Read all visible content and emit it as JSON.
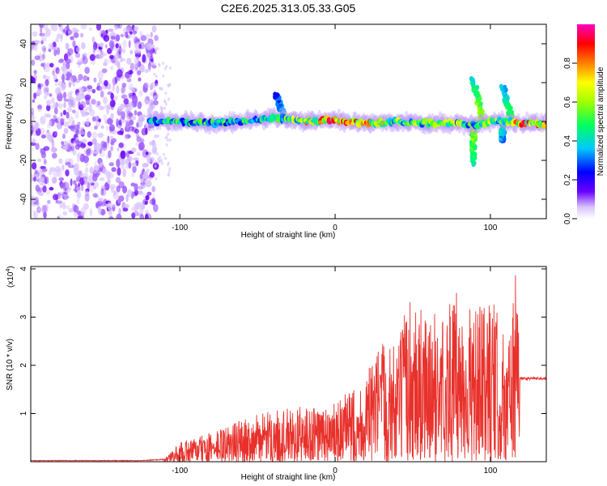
{
  "figure": {
    "title": "C2E6.2025.313.05.33.G05"
  },
  "chart_data": [
    {
      "type": "heatmap",
      "title": "C2E6.2025.313.05.33.G05",
      "xlabel": "Height of straight line (km)",
      "ylabel": "Frequency (Hz)",
      "xlim": [
        -196,
        136
      ],
      "ylim": [
        -50,
        50
      ],
      "xticks": [
        -100,
        0,
        100
      ],
      "yticks": [
        -40,
        -20,
        0,
        20,
        40
      ],
      "grid": false,
      "colorbar": {
        "label": "Normalized spectral amplitude",
        "range": [
          0,
          1
        ],
        "ticks": [
          0.0,
          0.2,
          0.4,
          0.6,
          0.8
        ],
        "colors": [
          "#ffffff",
          "#6a00ff",
          "#0000ff",
          "#00ffff",
          "#00ff00",
          "#ffff00",
          "#ff8000",
          "#ff0000",
          "#ff00ff"
        ]
      },
      "noise_region": {
        "x_range": [
          -196,
          -115
        ],
        "y_range": [
          -50,
          50
        ],
        "amplitude": 0.1
      },
      "ridge": [
        {
          "x": -120,
          "freq": 0,
          "amp": 0.4
        },
        {
          "x": -100,
          "freq": 0,
          "amp": 0.5
        },
        {
          "x": -80,
          "freq": -1,
          "amp": 0.5
        },
        {
          "x": -60,
          "freq": 0,
          "amp": 0.5
        },
        {
          "x": -40,
          "freq": 2,
          "amp": 0.45
        },
        {
          "x": -20,
          "freq": 0,
          "amp": 0.7
        },
        {
          "x": 0,
          "freq": 1,
          "amp": 0.85
        },
        {
          "x": 20,
          "freq": -1,
          "amp": 0.75
        },
        {
          "x": 40,
          "freq": 0,
          "amp": 0.6
        },
        {
          "x": 60,
          "freq": -1,
          "amp": 0.55
        },
        {
          "x": 80,
          "freq": -1,
          "amp": 0.6
        },
        {
          "x": 90,
          "freq": -2,
          "amp": 0.5
        },
        {
          "x": 100,
          "freq": 0,
          "amp": 0.6
        },
        {
          "x": 110,
          "freq": 0,
          "amp": 0.55
        },
        {
          "x": 120,
          "freq": -1,
          "amp": 0.8
        },
        {
          "x": 136,
          "freq": -1,
          "amp": 0.8
        }
      ],
      "features": [
        {
          "x": -32,
          "freq_range": [
            0,
            14
          ],
          "amp": 0.35
        },
        {
          "x": 89,
          "freq_range": [
            -22,
            0
          ],
          "amp": 0.6
        },
        {
          "x": 95,
          "freq_range": [
            0,
            22
          ],
          "amp": 0.6
        },
        {
          "x": 114,
          "freq_range": [
            0,
            18
          ],
          "amp": 0.5
        },
        {
          "x": 108,
          "freq_range": [
            -10,
            0
          ],
          "amp": 0.4
        }
      ]
    },
    {
      "type": "line",
      "title": "",
      "xlabel": "Height of straight line (km)",
      "ylabel": "SNR (10 * v/v)",
      "ylabel_multiplier": "(x10",
      "ylabel_multiplier_exponent": "4",
      "ylabel_multiplier_close": ")",
      "xlim": [
        -196,
        136
      ],
      "ylim": [
        0,
        4.05
      ],
      "xticks": [
        -100,
        0,
        100
      ],
      "yticks": [
        1,
        2,
        3,
        4
      ],
      "grid": false,
      "series": [
        {
          "name": "SNR",
          "color": "#e8312c",
          "envelope": [
            {
              "x": -196,
              "max": 0.03
            },
            {
              "x": -125,
              "max": 0.03
            },
            {
              "x": -110,
              "max": 0.06
            },
            {
              "x": -100,
              "max": 0.4
            },
            {
              "x": -80,
              "max": 0.6
            },
            {
              "x": -60,
              "max": 0.9
            },
            {
              "x": -40,
              "max": 1.05
            },
            {
              "x": -20,
              "max": 1.15
            },
            {
              "x": 0,
              "max": 1.2
            },
            {
              "x": 20,
              "max": 1.8
            },
            {
              "x": 30,
              "max": 2.55
            },
            {
              "x": 40,
              "max": 2.5
            },
            {
              "x": 50,
              "max": 3.65
            },
            {
              "x": 60,
              "max": 2.9
            },
            {
              "x": 70,
              "max": 3.3
            },
            {
              "x": 80,
              "max": 3.55
            },
            {
              "x": 90,
              "max": 3.1
            },
            {
              "x": 100,
              "max": 3.45
            },
            {
              "x": 110,
              "max": 2.6
            },
            {
              "x": 117,
              "max": 4.05
            },
            {
              "x": 120,
              "max": 1.75
            },
            {
              "x": 136,
              "max": 1.72
            }
          ],
          "plateau": {
            "x_range": [
              119,
              136
            ],
            "value": 1.73
          }
        }
      ]
    }
  ]
}
